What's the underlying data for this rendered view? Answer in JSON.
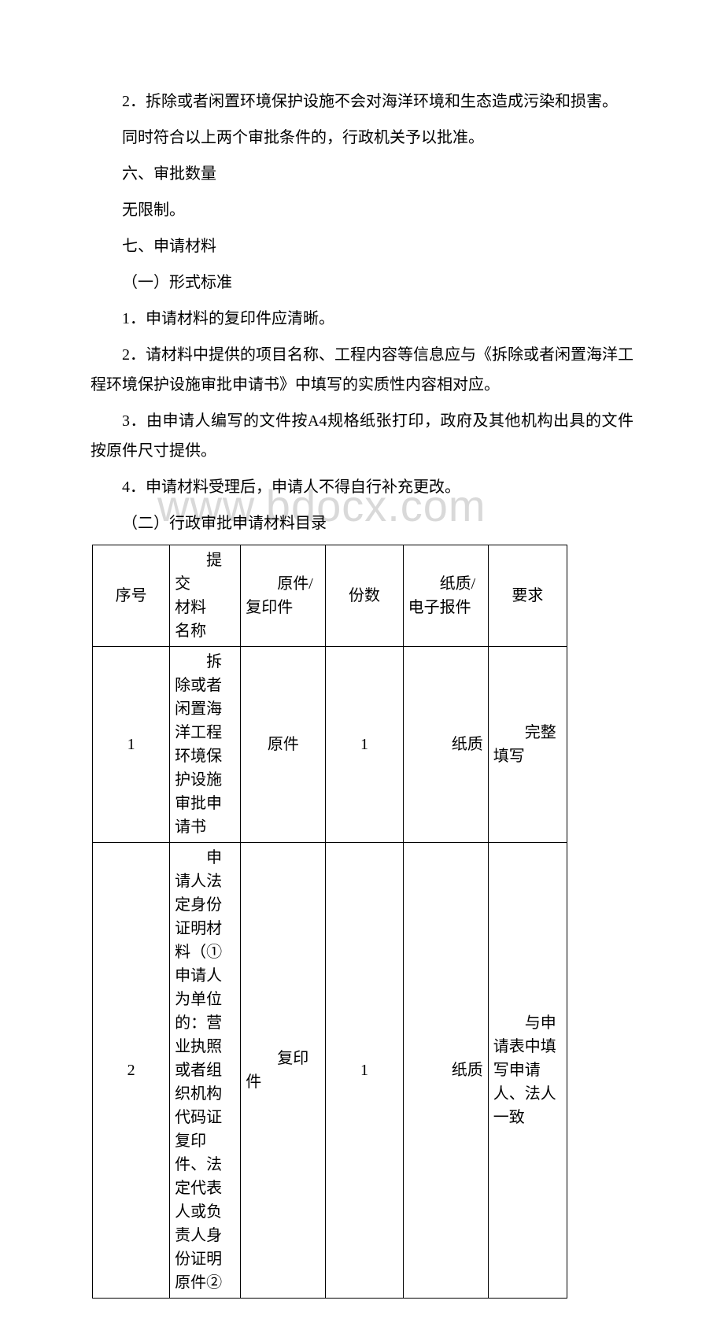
{
  "paragraphs": {
    "p1": "2．拆除或者闲置环境保护设施不会对海洋环境和生态造成污染和损害。",
    "p2": "同时符合以上两个审批条件的，行政机关予以批准。",
    "p3": "六、审批数量",
    "p4": "无限制。",
    "p5": "七、申请材料",
    "p6": "（一）形式标准",
    "p7": "1．申请材料的复印件应清晰。",
    "p8": "2．请材料中提供的项目名称、工程内容等信息应与《拆除或者闲置海洋工程环境保护设施审批申请书》中填写的实质性内容相对应。",
    "p9": "3．由申请人编写的文件按A4规格纸张打印，政府及其他机构出具的文件按原件尺寸提供。",
    "p10": "4．申请材料受理后，申请人不得自行补充更改。",
    "p11": "（二）行政审批申请材料目录"
  },
  "watermark_text": "www.bdocx.com",
  "table": {
    "headers": {
      "seq": "序号",
      "material_line1": "提交",
      "material_line2": "材料",
      "material_line3": "名称",
      "orig_line1": "原件/",
      "orig_line2": "复印件",
      "qty": "份数",
      "media_line1": "纸质/",
      "media_line2": "电子报件",
      "req": "要求"
    },
    "row1": {
      "seq": "1",
      "material": "拆除或者闲置海洋工程环境保护设施审批申请书",
      "orig": "原件",
      "qty": "1",
      "media": "纸质",
      "req": "完整填写"
    },
    "row2": {
      "seq": "2",
      "material": "申请人法定身份证明材料（①申请人为单位的：营业执照或者组织机构代码证复印件、法定代表人或负责人身份证明原件②",
      "orig": "复印件",
      "qty": "1",
      "media": "纸质",
      "req": "与申请表中填写申请人、法人一致"
    }
  },
  "colors": {
    "text": "#000000",
    "background": "#ffffff",
    "watermark": "#d9d9d9",
    "border": "#000000"
  }
}
